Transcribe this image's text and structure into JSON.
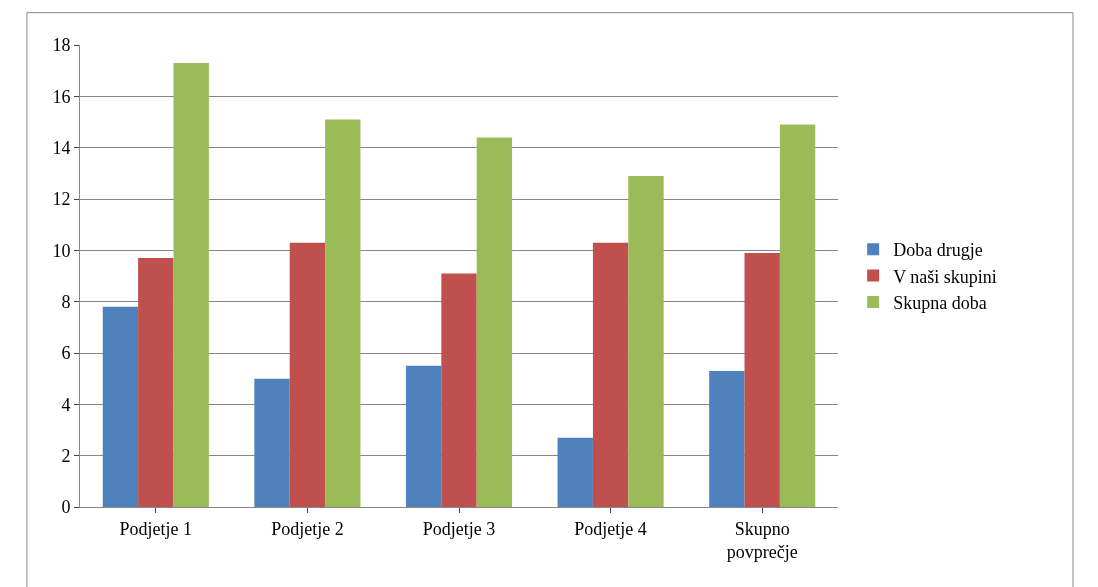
{
  "chart_data": {
    "type": "bar",
    "categories": [
      "Podjetje 1",
      "Podjetje 2",
      "Podjetje 3",
      "Podjetje 4",
      "Skupno povprečje"
    ],
    "series": [
      {
        "name": "Doba drugje",
        "color": "#4f81bd",
        "values": [
          7.8,
          5.0,
          5.5,
          2.7,
          5.3
        ]
      },
      {
        "name": "V naši skupini",
        "color": "#c0504d",
        "values": [
          9.7,
          10.3,
          9.1,
          10.3,
          9.9
        ]
      },
      {
        "name": "Skupna doba",
        "color": "#9bbb59",
        "values": [
          17.3,
          15.1,
          14.4,
          12.9,
          14.9
        ]
      }
    ],
    "ylim": [
      0,
      18
    ],
    "yticks": [
      0,
      2,
      4,
      6,
      8,
      10,
      12,
      14,
      16,
      18
    ],
    "grid": "y",
    "legend": "right"
  }
}
